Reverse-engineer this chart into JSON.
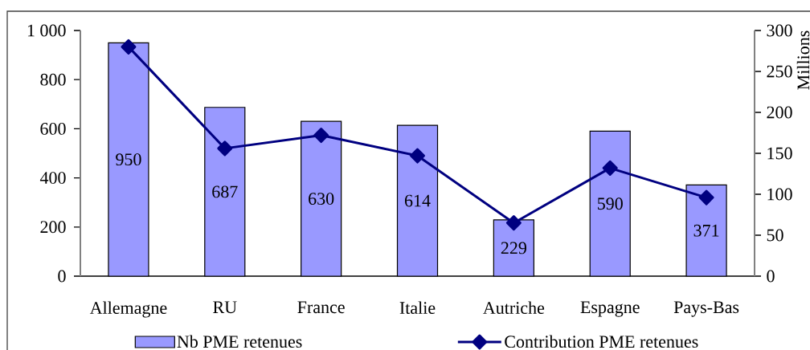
{
  "chart_data": {
    "type": "bar",
    "categories": [
      "Allemagne",
      "RU",
      "France",
      "Italie",
      "Autriche",
      "Espagne",
      "Pays-Bas"
    ],
    "series": [
      {
        "name": "Nb PME retenues",
        "type": "bar",
        "color": "#9999ff",
        "values": [
          950,
          687,
          630,
          614,
          229,
          590,
          371
        ],
        "value_labels": [
          "950",
          "687",
          "630",
          "614",
          "229",
          "590",
          "371"
        ]
      },
      {
        "name": "Contribution PME retenues",
        "type": "line",
        "axis": "y2",
        "color": "#000080",
        "marker": "diamond",
        "values": [
          280,
          156,
          172,
          147,
          65,
          132,
          96
        ]
      }
    ],
    "y2label": "Millions",
    "ylim": [
      0,
      1000
    ],
    "yticks": [
      0,
      200,
      400,
      600,
      800,
      {
        "value": 1000,
        "label": "1 000"
      }
    ],
    "y2lim": [
      0,
      300
    ],
    "y2ticks": [
      0,
      50,
      100,
      150,
      200,
      250,
      300
    ],
    "legend": "bottom"
  }
}
